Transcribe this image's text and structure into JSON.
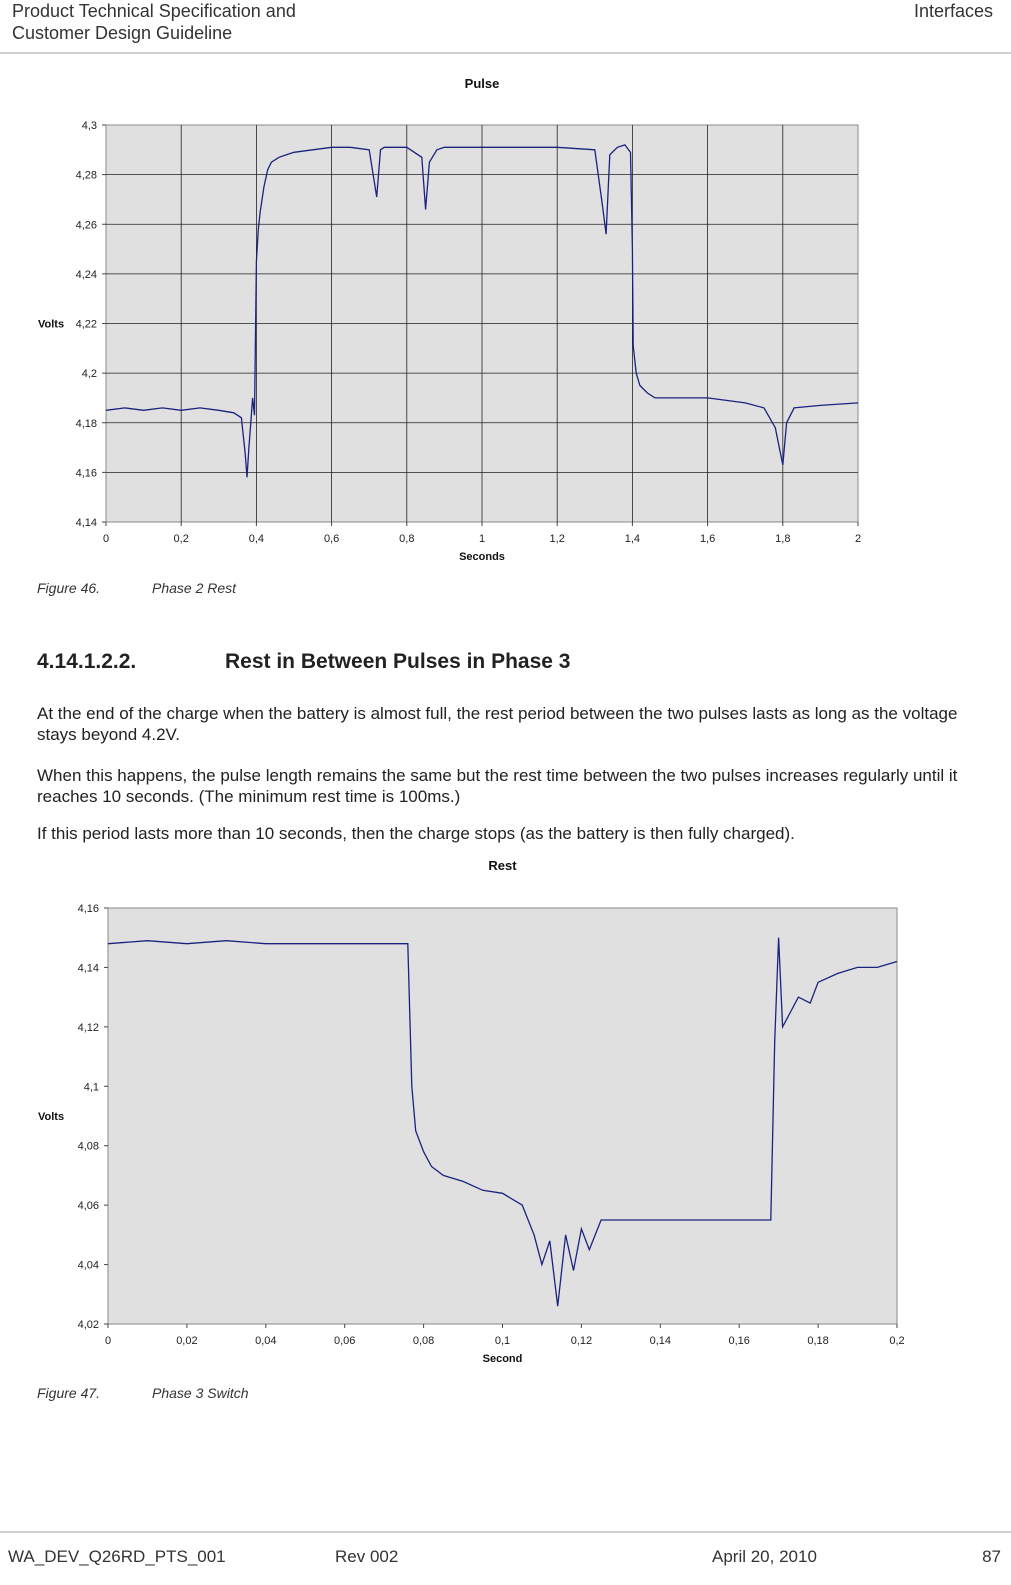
{
  "header": {
    "title_line1": "Product Technical Specification and",
    "title_line2": "Customer Design Guideline",
    "section": "Interfaces"
  },
  "figure1": {
    "caption_number": "Figure 46.",
    "caption_text": "Phase 2 Rest",
    "chart_data": {
      "type": "line",
      "title": "Pulse",
      "xlabel": "Seconds",
      "ylabel": "Volts",
      "xlim": [
        0,
        2
      ],
      "ylim": [
        4.14,
        4.3
      ],
      "x_ticks": [
        "0",
        "0,2",
        "0,4",
        "0,6",
        "0,8",
        "1",
        "1,2",
        "1,4",
        "1,6",
        "1,8",
        "2"
      ],
      "y_ticks": [
        "4,14",
        "4,16",
        "4,18",
        "4,2",
        "4,22",
        "4,24",
        "4,26",
        "4,28",
        "4,3"
      ],
      "grid": true,
      "series": [
        {
          "color": "#1a237e",
          "x": [
            0,
            0.05,
            0.1,
            0.15,
            0.2,
            0.25,
            0.3,
            0.34,
            0.36,
            0.37,
            0.375,
            0.38,
            0.385,
            0.39,
            0.395,
            0.4,
            0.405,
            0.41,
            0.42,
            0.43,
            0.44,
            0.46,
            0.48,
            0.5,
            0.55,
            0.6,
            0.65,
            0.7,
            0.72,
            0.73,
            0.74,
            0.8,
            0.84,
            0.85,
            0.86,
            0.88,
            0.9,
            1.0,
            1.1,
            1.2,
            1.3,
            1.32,
            1.33,
            1.34,
            1.36,
            1.38,
            1.395,
            1.4,
            1.402,
            1.41,
            1.42,
            1.44,
            1.46,
            1.5,
            1.6,
            1.7,
            1.75,
            1.78,
            1.8,
            1.81,
            1.83,
            1.9,
            2.0
          ],
          "y": [
            4.185,
            4.186,
            4.185,
            4.186,
            4.185,
            4.186,
            4.185,
            4.184,
            4.182,
            4.168,
            4.158,
            4.17,
            4.18,
            4.19,
            4.183,
            4.245,
            4.258,
            4.265,
            4.275,
            4.282,
            4.285,
            4.287,
            4.288,
            4.289,
            4.29,
            4.291,
            4.291,
            4.29,
            4.271,
            4.29,
            4.291,
            4.291,
            4.287,
            4.266,
            4.285,
            4.29,
            4.291,
            4.291,
            4.291,
            4.291,
            4.29,
            4.268,
            4.256,
            4.288,
            4.291,
            4.292,
            4.289,
            4.25,
            4.211,
            4.2,
            4.195,
            4.192,
            4.19,
            4.19,
            4.19,
            4.188,
            4.186,
            4.178,
            4.163,
            4.18,
            4.186,
            4.187,
            4.188
          ]
        }
      ]
    }
  },
  "section": {
    "number": "4.14.1.2.2.",
    "title": "Rest in Between Pulses in Phase 3"
  },
  "paragraphs": {
    "p1": "At the end of the charge when the battery is almost full, the rest period between the two pulses lasts as long as the voltage stays beyond 4.2V.",
    "p2": "When this happens, the pulse length remains the same but the rest time between the two pulses increases regularly until it reaches 10 seconds. (The minimum rest time is 100ms.)",
    "p3": "If this period lasts more than 10 seconds, then the charge stops (as the battery is then fully charged)."
  },
  "figure2": {
    "caption_number": "Figure 47.",
    "caption_text": "Phase 3 Switch",
    "chart_data": {
      "type": "line",
      "title": "Rest",
      "xlabel": "Second",
      "ylabel": "Volts",
      "xlim": [
        0,
        0.2
      ],
      "ylim": [
        4.02,
        4.16
      ],
      "x_ticks": [
        "0",
        "0,02",
        "0,04",
        "0,06",
        "0,08",
        "0,1",
        "0,12",
        "0,14",
        "0,16",
        "0,18",
        "0,2"
      ],
      "y_ticks": [
        "4,02",
        "4,04",
        "4,06",
        "4,08",
        "4,1",
        "4,12",
        "4,14",
        "4,16"
      ],
      "grid": false,
      "series": [
        {
          "color": "#1a237e",
          "x": [
            0,
            0.01,
            0.02,
            0.03,
            0.04,
            0.05,
            0.06,
            0.07,
            0.076,
            0.077,
            0.078,
            0.08,
            0.082,
            0.085,
            0.09,
            0.095,
            0.1,
            0.105,
            0.108,
            0.11,
            0.112,
            0.114,
            0.116,
            0.118,
            0.12,
            0.122,
            0.125,
            0.13,
            0.14,
            0.15,
            0.16,
            0.168,
            0.169,
            0.17,
            0.171,
            0.173,
            0.175,
            0.178,
            0.18,
            0.185,
            0.19,
            0.195,
            0.2
          ],
          "y": [
            4.148,
            4.149,
            4.148,
            4.149,
            4.148,
            4.148,
            4.148,
            4.148,
            4.148,
            4.1,
            4.085,
            4.078,
            4.073,
            4.07,
            4.068,
            4.065,
            4.064,
            4.06,
            4.05,
            4.04,
            4.048,
            4.026,
            4.05,
            4.038,
            4.052,
            4.045,
            4.055,
            4.055,
            4.055,
            4.055,
            4.055,
            4.055,
            4.115,
            4.15,
            4.12,
            4.125,
            4.13,
            4.128,
            4.135,
            4.138,
            4.14,
            4.14,
            4.142
          ]
        }
      ]
    }
  },
  "footer": {
    "doc_id": "WA_DEV_Q26RD_PTS_001",
    "rev": "Rev 002",
    "date": "April 20, 2010",
    "page": "87"
  }
}
